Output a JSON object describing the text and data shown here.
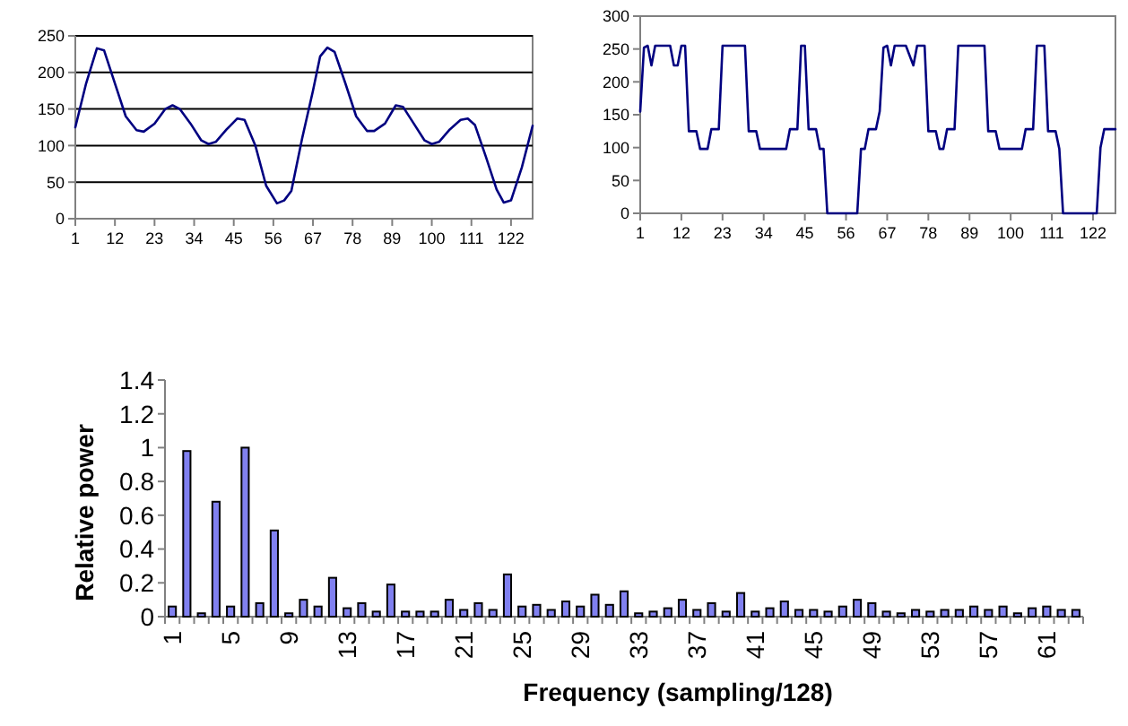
{
  "chart_data": [
    {
      "type": "line",
      "color": "#000080",
      "grid": "y",
      "xlim": [
        1,
        128
      ],
      "xticks": [
        1,
        12,
        23,
        34,
        45,
        56,
        67,
        78,
        89,
        100,
        111,
        122
      ],
      "ylim": [
        0,
        250
      ],
      "yticks": [
        0,
        50,
        100,
        150,
        200,
        250
      ],
      "x": [
        1,
        4,
        7,
        9,
        12,
        15,
        18,
        20,
        23,
        26,
        28,
        30,
        33,
        36,
        38,
        40,
        43,
        46,
        48,
        51,
        54,
        57,
        59,
        61,
        64,
        67,
        69,
        71,
        73,
        76,
        79,
        82,
        84,
        87,
        90,
        92,
        95,
        98,
        100,
        102,
        105,
        108,
        110,
        112,
        115,
        118,
        120,
        122,
        125,
        128
      ],
      "values": [
        125,
        185,
        233,
        230,
        185,
        140,
        121,
        119,
        130,
        150,
        155,
        150,
        130,
        107,
        102,
        105,
        122,
        137,
        135,
        100,
        45,
        21,
        25,
        38,
        110,
        175,
        222,
        234,
        228,
        185,
        140,
        120,
        120,
        130,
        155,
        153,
        130,
        107,
        102,
        105,
        122,
        135,
        137,
        128,
        85,
        40,
        22,
        25,
        70,
        127
      ]
    },
    {
      "type": "line",
      "color": "#000080",
      "grid": false,
      "xlim": [
        1,
        128
      ],
      "xticks": [
        1,
        12,
        23,
        34,
        45,
        56,
        67,
        78,
        89,
        100,
        111,
        122
      ],
      "ylim": [
        0,
        300
      ],
      "yticks": [
        0,
        50,
        100,
        150,
        200,
        250,
        300
      ],
      "x": [
        1,
        2,
        3,
        4,
        5,
        9,
        10,
        11,
        12,
        13,
        14,
        16,
        17,
        19,
        20,
        22,
        23,
        29,
        30,
        32,
        33,
        40,
        41,
        43,
        44,
        45,
        46,
        48,
        49,
        50,
        51,
        59,
        60,
        61,
        62,
        64,
        65,
        66,
        67,
        68,
        69,
        72,
        74,
        75,
        77,
        78,
        80,
        81,
        82,
        83,
        85,
        86,
        93,
        94,
        96,
        97,
        103,
        104,
        106,
        107,
        109,
        110,
        112,
        113,
        114,
        123,
        124,
        125,
        128
      ],
      "values": [
        155,
        252,
        255,
        225,
        255,
        255,
        225,
        225,
        255,
        255,
        125,
        125,
        98,
        98,
        128,
        128,
        255,
        255,
        125,
        125,
        98,
        98,
        128,
        128,
        255,
        255,
        128,
        128,
        98,
        98,
        0,
        0,
        98,
        98,
        128,
        128,
        155,
        252,
        255,
        225,
        255,
        255,
        225,
        255,
        255,
        125,
        125,
        98,
        98,
        128,
        128,
        255,
        255,
        125,
        125,
        98,
        98,
        128,
        128,
        255,
        255,
        125,
        125,
        98,
        0,
        0,
        100,
        128,
        128
      ]
    },
    {
      "type": "bar",
      "color": "#8080f0",
      "grid": false,
      "xlabel": "Frequency (sampling/128)",
      "ylabel": "Relative power",
      "ylim": [
        0,
        1.4
      ],
      "yticks": [
        0,
        0.2,
        0.4,
        0.6,
        0.8,
        1,
        1.2,
        1.4
      ],
      "categories": [
        "1",
        null,
        null,
        null,
        "5",
        null,
        null,
        null,
        "9",
        null,
        null,
        null,
        "13",
        null,
        null,
        null,
        "17",
        null,
        null,
        null,
        "21",
        null,
        null,
        null,
        "25",
        null,
        null,
        null,
        "29",
        null,
        null,
        null,
        "33",
        null,
        null,
        null,
        "37",
        null,
        null,
        null,
        "41",
        null,
        null,
        null,
        "45",
        null,
        null,
        null,
        "49",
        null,
        null,
        null,
        "53",
        null,
        null,
        null,
        "57",
        null,
        null,
        null,
        "61",
        null,
        null
      ],
      "values": [
        0.06,
        0.98,
        0.02,
        0.68,
        0.06,
        1.0,
        0.08,
        0.51,
        0.02,
        0.1,
        0.06,
        0.23,
        0.05,
        0.08,
        0.03,
        0.19,
        0.03,
        0.03,
        0.03,
        0.1,
        0.04,
        0.08,
        0.04,
        0.25,
        0.06,
        0.07,
        0.04,
        0.09,
        0.06,
        0.13,
        0.07,
        0.15,
        0.02,
        0.03,
        0.05,
        0.1,
        0.04,
        0.08,
        0.03,
        0.14,
        0.03,
        0.05,
        0.09,
        0.04,
        0.04,
        0.03,
        0.06,
        0.1,
        0.08,
        0.03,
        0.02,
        0.04,
        0.03,
        0.04,
        0.04,
        0.06,
        0.04,
        0.06,
        0.02,
        0.05,
        0.06,
        0.04,
        0.04
      ]
    }
  ]
}
